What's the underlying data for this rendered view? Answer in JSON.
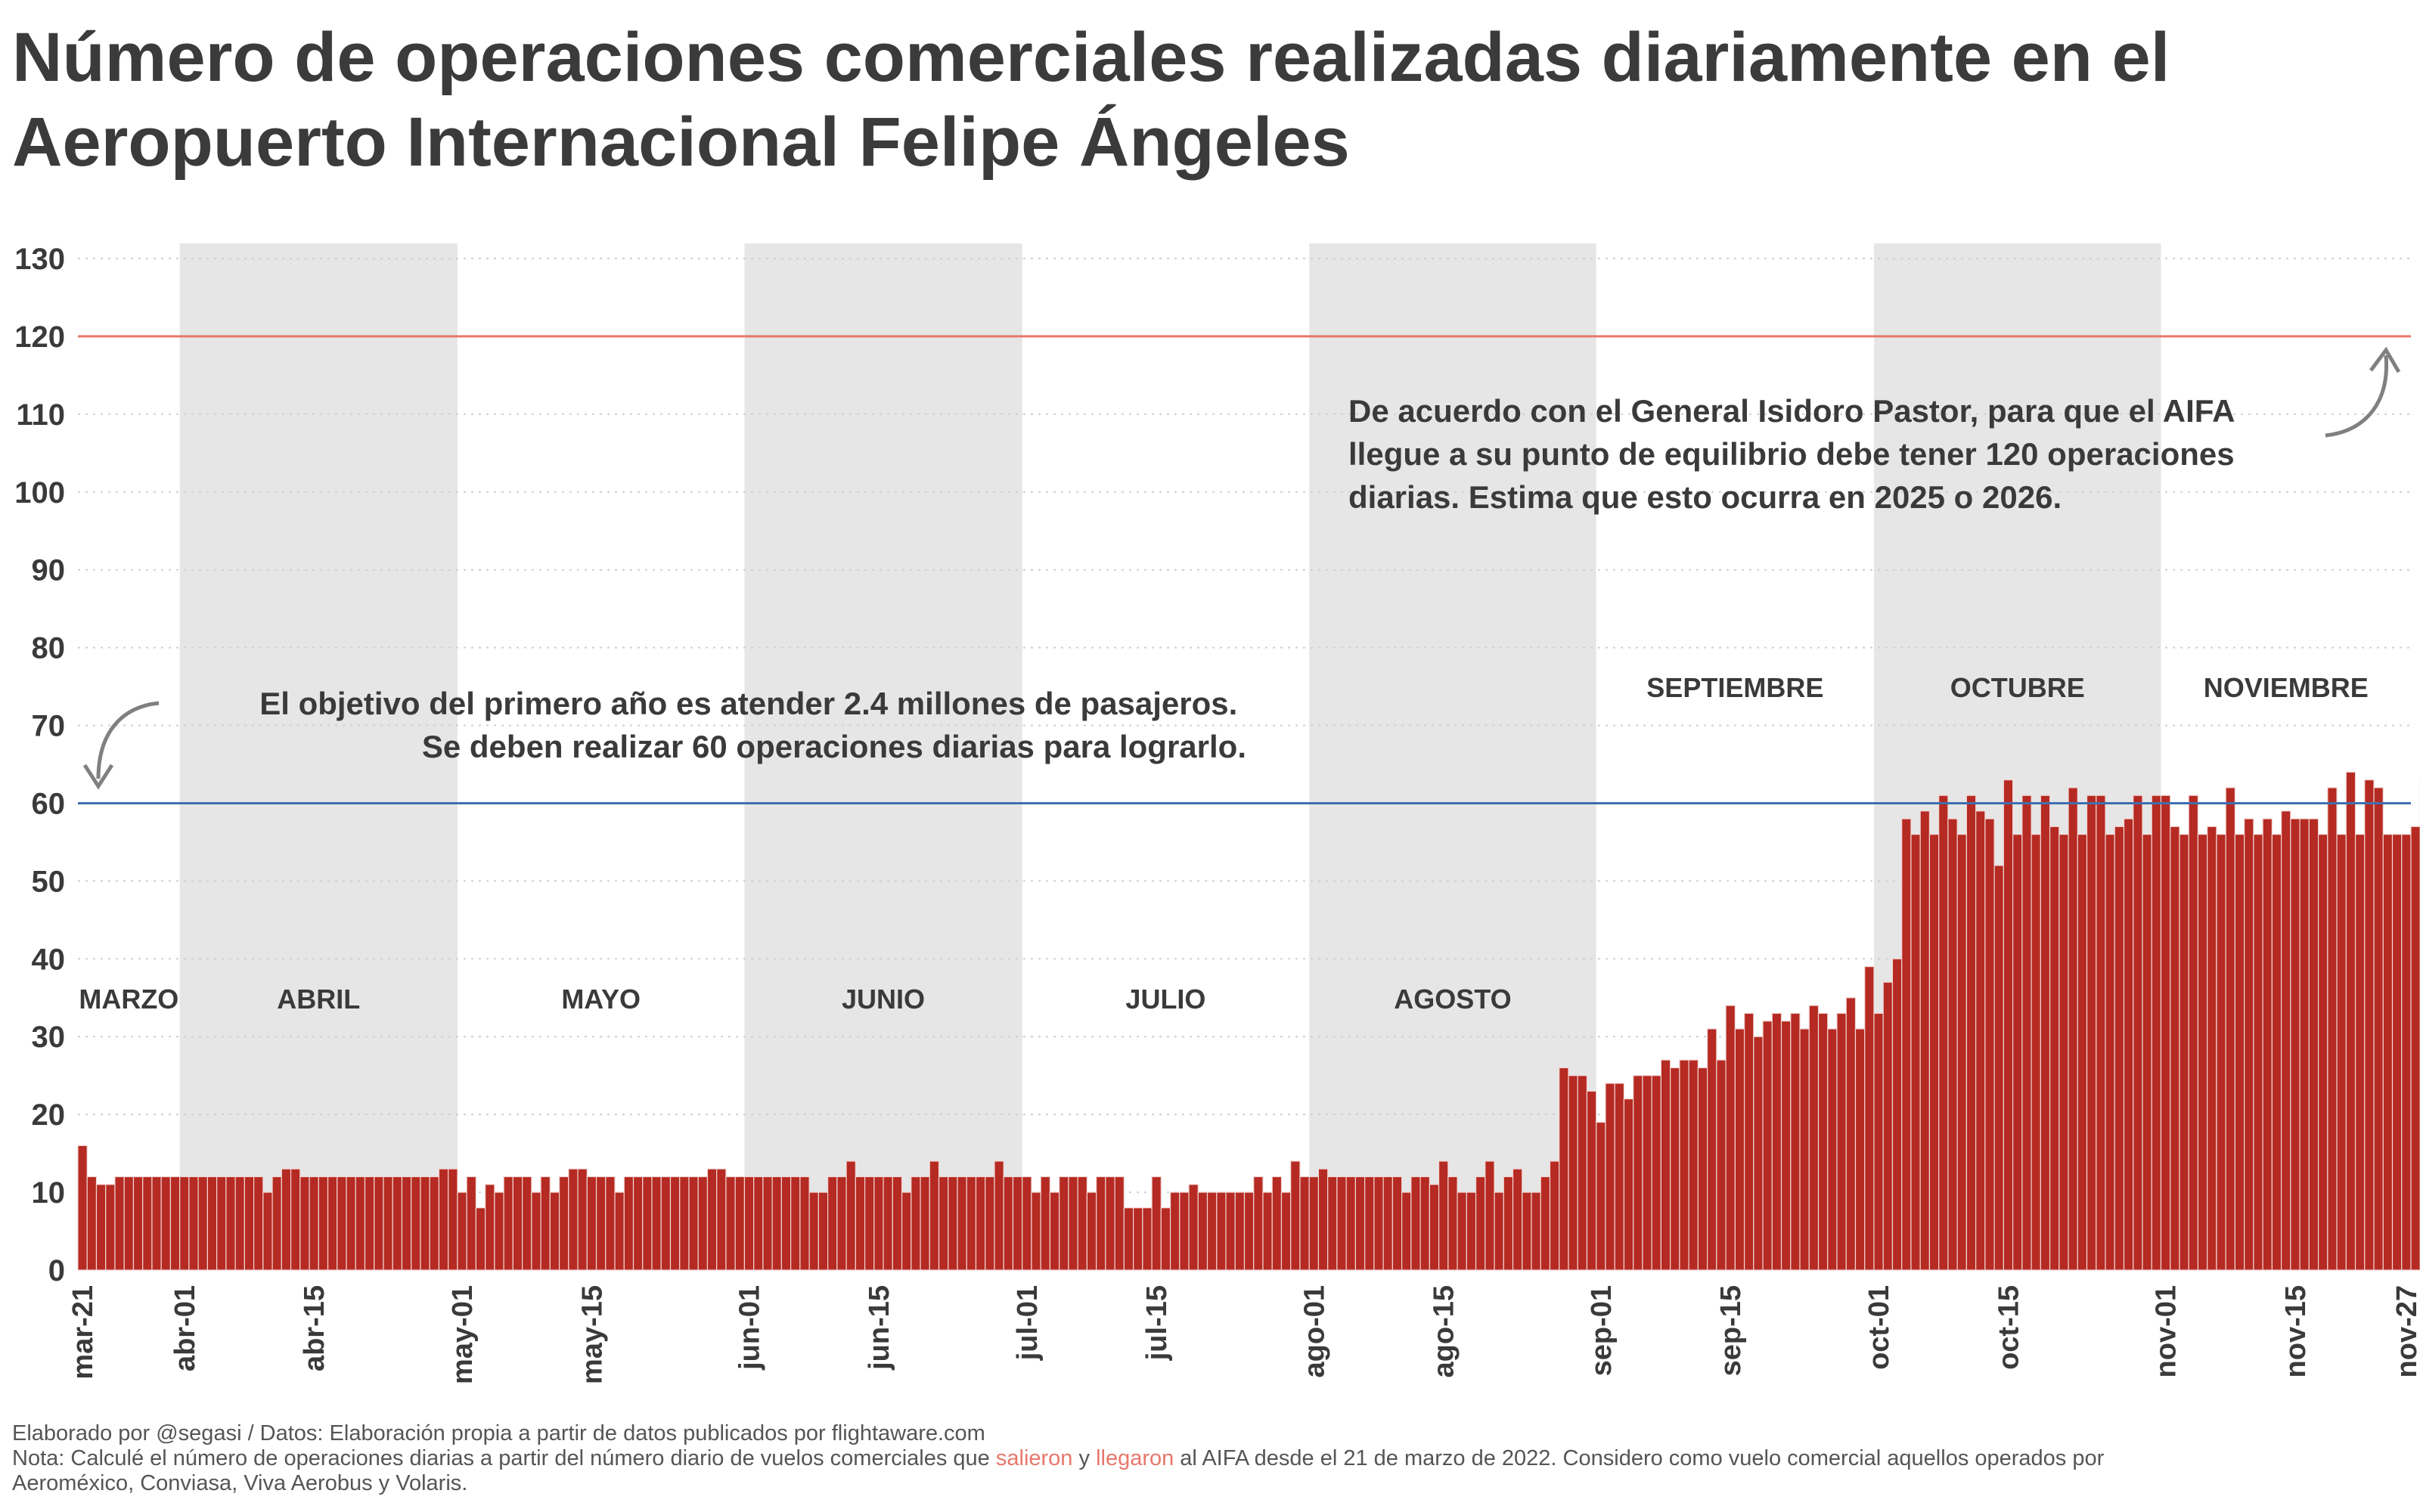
{
  "title": {
    "line1": "Número de operaciones comerciales realizadas diariamente en el",
    "line2": "Aeropuerto Internacional Felipe Ángeles"
  },
  "colors": {
    "bar": "#b52a22",
    "bar_edge": "#f2d5d2",
    "ref_120": "#e8776b",
    "ref_60": "#3f6fb0",
    "shade": "#e6e6e6",
    "month_label_on_shade": "#ffffff",
    "month_label_off_shade": "#b0b0b0",
    "arrow": "#808080"
  },
  "chart_data": {
    "type": "bar",
    "x_start": "2022-03-21",
    "x_end": "2022-11-27",
    "ylim": [
      0,
      130
    ],
    "yticks": [
      0,
      10,
      20,
      30,
      40,
      50,
      60,
      70,
      80,
      90,
      100,
      110,
      120,
      130
    ],
    "xticks": [
      "mar-21",
      "abr-01",
      "abr-15",
      "may-01",
      "may-15",
      "jun-01",
      "jun-15",
      "jul-01",
      "jul-15",
      "ago-01",
      "ago-15",
      "sep-01",
      "sep-15",
      "oct-01",
      "oct-15",
      "nov-01",
      "nov-15",
      "nov-27"
    ],
    "grid": "horizontal-dotted",
    "months": [
      "MARZO",
      "ABRIL",
      "MAYO",
      "JUNIO",
      "JULIO",
      "AGOSTO",
      "SEPTIEMBRE",
      "OCTUBRE",
      "NOVIEMBRE"
    ],
    "shaded_months": [
      "ABRIL",
      "JUNIO",
      "AGOSTO",
      "OCTUBRE"
    ],
    "reference_lines": [
      {
        "y": 120,
        "color": "#e8776b"
      },
      {
        "y": 60,
        "color": "#3f6fb0"
      }
    ],
    "values": [
      16,
      12,
      11,
      11,
      12,
      12,
      12,
      12,
      12,
      12,
      12,
      12,
      12,
      12,
      12,
      12,
      12,
      12,
      12,
      12,
      10,
      12,
      13,
      13,
      12,
      12,
      12,
      12,
      12,
      12,
      12,
      12,
      12,
      12,
      12,
      12,
      12,
      12,
      12,
      13,
      13,
      10,
      12,
      8,
      11,
      10,
      12,
      12,
      12,
      10,
      12,
      10,
      12,
      13,
      13,
      12,
      12,
      12,
      10,
      12,
      12,
      12,
      12,
      12,
      12,
      12,
      12,
      12,
      13,
      13,
      12,
      12,
      12,
      12,
      12,
      12,
      12,
      12,
      12,
      10,
      10,
      12,
      12,
      14,
      12,
      12,
      12,
      12,
      12,
      10,
      12,
      12,
      14,
      12,
      12,
      12,
      12,
      12,
      12,
      14,
      12,
      12,
      12,
      10,
      12,
      10,
      12,
      12,
      12,
      10,
      12,
      12,
      12,
      8,
      8,
      8,
      12,
      8,
      10,
      10,
      11,
      10,
      10,
      10,
      10,
      10,
      10,
      12,
      10,
      12,
      10,
      14,
      12,
      12,
      13,
      12,
      12,
      12,
      12,
      12,
      12,
      12,
      12,
      10,
      12,
      12,
      11,
      14,
      12,
      10,
      10,
      12,
      14,
      10,
      12,
      13,
      10,
      10,
      12,
      14,
      26,
      25,
      25,
      23,
      19,
      24,
      24,
      22,
      25,
      25,
      25,
      27,
      26,
      27,
      27,
      26,
      31,
      27,
      34,
      31,
      33,
      30,
      32,
      33,
      32,
      33,
      31,
      34,
      33,
      31,
      33,
      35,
      31,
      39,
      33,
      37,
      40,
      58,
      56,
      59,
      56,
      61,
      58,
      56,
      61,
      59,
      58,
      52,
      63,
      56,
      61,
      56,
      61,
      57,
      56,
      62,
      56,
      61,
      61,
      56,
      57,
      58,
      61,
      56,
      61,
      61,
      57,
      56,
      61,
      56,
      57,
      56,
      62,
      56,
      58,
      56,
      58,
      56,
      59,
      58,
      58,
      58,
      56,
      62,
      56,
      64,
      56,
      63,
      62,
      56,
      56,
      56,
      57,
      63,
      56,
      57,
      56,
      58,
      58,
      58,
      56,
      63,
      56,
      60,
      56,
      60,
      58,
      56,
      56,
      62,
      56,
      60,
      57,
      59,
      57,
      56,
      57,
      62,
      56,
      60,
      56
    ]
  },
  "annotations": {
    "goal_120": [
      "De acuerdo con el General Isidoro Pastor, para que el AIFA",
      "llegue a su punto de equilibrio debe tener 120 operaciones",
      "diarias. Estima que esto ocurra en 2025 o 2026."
    ],
    "goal_60": [
      "El objetivo del primero año es atender 2.4 millones de pasajeros.",
      "Se deben realizar 60 operaciones diarias para lograrlo."
    ]
  },
  "footer": {
    "credit": "Elaborado por @segasi / Datos: Elaboración propia a partir de datos publicados por flightaware.com",
    "note_part1": "Nota: Calculé el número de operaciones diarias a partir del número diario de vuelos comerciales que ",
    "note_salieron": "salieron",
    "note_part2": " y ",
    "note_llegaron": "llegaron",
    "note_part3": " al AIFA desde el 21 de marzo de 2022. Considero como vuelo comercial aquellos operados por",
    "note_line2": "Aeroméxico, Conviasa, Viva Aerobus y Volaris."
  }
}
